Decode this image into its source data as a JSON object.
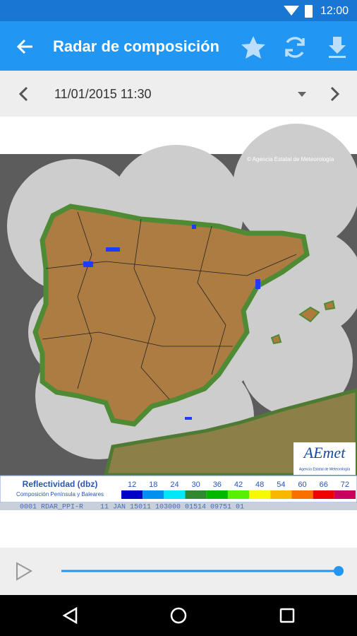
{
  "status_bar": {
    "time": "12:00"
  },
  "app_bar": {
    "title": "Radar de composición"
  },
  "date_bar": {
    "datetime": "11/01/2015 11:30"
  },
  "map": {
    "copyright": "© Agencia Estatal de Meteorología",
    "logo": "AEmet",
    "logo_subtitle": "Agencia Estatal de Meteorología"
  },
  "legend": {
    "title": "Reflectividad (dbz)",
    "subtitle": "Composición Península y Baleares",
    "levels": [
      12,
      18,
      24,
      30,
      36,
      42,
      48,
      54,
      60,
      66,
      72
    ],
    "colors": [
      "#0000c8",
      "#0090f0",
      "#00e8f8",
      "#308830",
      "#00b800",
      "#58f000",
      "#f8f800",
      "#f8b800",
      "#f87000",
      "#f00000",
      "#c80060"
    ]
  },
  "footer_code": "0001 RDAR_PPI-R    11 JAN 15011 103000 01514 09751 01"
}
